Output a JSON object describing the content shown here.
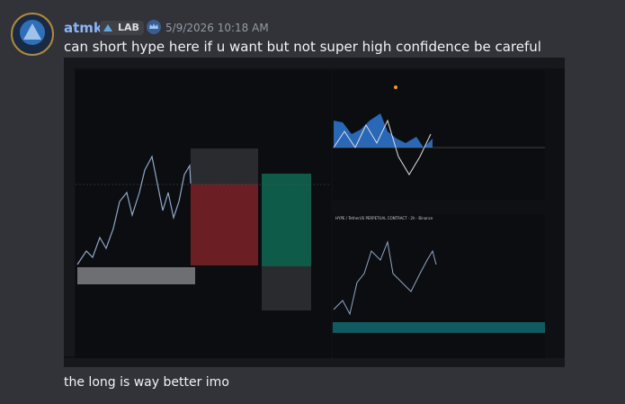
{
  "message": {
    "author": "atmk",
    "tag": "LAB",
    "timestamp": "5/9/2026 10:18 AM",
    "text": "can short hype here if u want but not super high confidence be careful",
    "followup": "the long is way better imo"
  },
  "attachment": {
    "chart_caption": "HYPE / TetherUS PERPETUAL CONTRACT · 2h · Binance"
  }
}
